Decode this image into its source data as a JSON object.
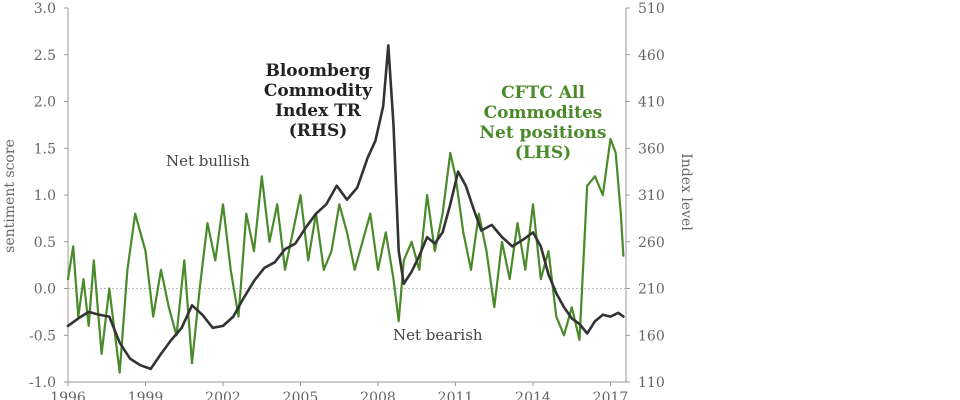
{
  "chart_data": {
    "type": "line",
    "title": "",
    "xlabel": "",
    "ylabel": "sentiment score",
    "ylabel_right": "Index level",
    "xlim": [
      1996,
      2017.6
    ],
    "ylim": [
      -1.0,
      3.0
    ],
    "ylim_right": [
      110,
      510
    ],
    "x_ticks": [
      "1996",
      "1999",
      "2002",
      "2005",
      "2008",
      "2011",
      "2014",
      "2017"
    ],
    "y_ticks": [
      "3.0",
      "2.5",
      "2.0",
      "1.5",
      "1.0",
      "0.5",
      "0.0",
      "-0.5",
      "-1.0"
    ],
    "y_ticks_right": [
      "510",
      "460",
      "410",
      "360",
      "310",
      "260",
      "210",
      "160",
      "110"
    ],
    "grid": false,
    "colors": {
      "green": "#4a8a2a",
      "black": "#333333",
      "axis": "#999999"
    },
    "series": [
      {
        "name": "CFTC All Commodites Net positions (LHS)",
        "axis": "left",
        "x": [
          1996.0,
          1996.2,
          1996.4,
          1996.6,
          1996.8,
          1997.0,
          1997.3,
          1997.6,
          1998.0,
          1998.3,
          1998.6,
          1999.0,
          1999.3,
          1999.6,
          1999.9,
          2000.2,
          2000.5,
          2000.8,
          2001.1,
          2001.4,
          2001.7,
          2002.0,
          2002.3,
          2002.6,
          2002.9,
          2003.2,
          2003.5,
          2003.8,
          2004.1,
          2004.4,
          2004.7,
          2005.0,
          2005.3,
          2005.6,
          2005.9,
          2006.2,
          2006.5,
          2006.8,
          2007.1,
          2007.4,
          2007.7,
          2008.0,
          2008.3,
          2008.6,
          2008.8,
          2009.0,
          2009.3,
          2009.6,
          2009.9,
          2010.2,
          2010.5,
          2010.8,
          2011.0,
          2011.3,
          2011.6,
          2011.9,
          2012.2,
          2012.5,
          2012.8,
          2013.1,
          2013.4,
          2013.7,
          2014.0,
          2014.3,
          2014.6,
          2014.9,
          2015.2,
          2015.5,
          2015.8,
          2016.1,
          2016.4,
          2016.7,
          2017.0,
          2017.2,
          2017.4,
          2017.5
        ],
        "values": [
          0.1,
          0.45,
          -0.3,
          0.1,
          -0.4,
          0.3,
          -0.7,
          0.0,
          -0.9,
          0.2,
          0.8,
          0.4,
          -0.3,
          0.2,
          -0.2,
          -0.5,
          0.3,
          -0.8,
          0.0,
          0.7,
          0.3,
          0.9,
          0.2,
          -0.3,
          0.8,
          0.4,
          1.2,
          0.5,
          0.9,
          0.2,
          0.6,
          1.0,
          0.3,
          0.8,
          0.2,
          0.4,
          0.9,
          0.6,
          0.2,
          0.5,
          0.8,
          0.2,
          0.6,
          0.1,
          -0.35,
          0.3,
          0.5,
          0.2,
          1.0,
          0.4,
          0.8,
          1.45,
          1.2,
          0.6,
          0.2,
          0.8,
          0.4,
          -0.2,
          0.5,
          0.1,
          0.7,
          0.2,
          0.9,
          0.1,
          0.4,
          -0.3,
          -0.5,
          -0.2,
          -0.55,
          1.1,
          1.2,
          1.0,
          1.6,
          1.45,
          0.8,
          0.35
        ]
      },
      {
        "name": "Bloomberg Commodity Index TR (RHS)",
        "axis": "right",
        "x": [
          1996.0,
          1996.4,
          1996.8,
          1997.2,
          1997.6,
          1998.0,
          1998.4,
          1998.8,
          1999.2,
          1999.6,
          2000.0,
          2000.4,
          2000.8,
          2001.2,
          2001.6,
          2002.0,
          2002.4,
          2002.8,
          2003.2,
          2003.6,
          2004.0,
          2004.4,
          2004.8,
          2005.2,
          2005.6,
          2006.0,
          2006.4,
          2006.8,
          2007.2,
          2007.6,
          2007.9,
          2008.2,
          2008.4,
          2008.6,
          2008.8,
          2009.0,
          2009.3,
          2009.6,
          2009.9,
          2010.2,
          2010.5,
          2010.8,
          2011.1,
          2011.4,
          2011.7,
          2012.0,
          2012.4,
          2012.8,
          2013.2,
          2013.6,
          2014.0,
          2014.3,
          2014.6,
          2014.9,
          2015.2,
          2015.5,
          2015.8,
          2016.1,
          2016.4,
          2016.7,
          2017.0,
          2017.3,
          2017.5
        ],
        "values": [
          170,
          178,
          185,
          182,
          180,
          152,
          135,
          128,
          124,
          140,
          155,
          168,
          192,
          182,
          168,
          170,
          180,
          200,
          218,
          232,
          238,
          252,
          258,
          275,
          290,
          300,
          320,
          305,
          318,
          350,
          368,
          405,
          470,
          385,
          250,
          215,
          228,
          245,
          265,
          258,
          270,
          300,
          335,
          320,
          295,
          272,
          278,
          265,
          255,
          262,
          270,
          255,
          225,
          205,
          190,
          178,
          172,
          162,
          175,
          182,
          180,
          184,
          180
        ]
      }
    ],
    "annotations": {
      "bcom": [
        "Bloomberg",
        "Commodity",
        "Index TR",
        "(RHS)"
      ],
      "cftc": [
        "CFTC All",
        "Commodites",
        "Net positions",
        "(LHS)"
      ],
      "bullish": "Net bullish",
      "bearish": "Net bearish"
    }
  }
}
